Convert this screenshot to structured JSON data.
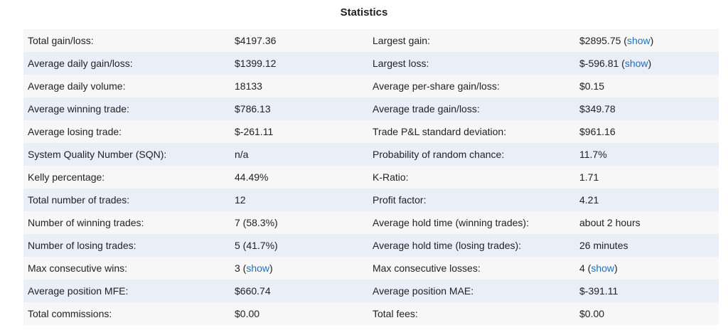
{
  "title": "Statistics",
  "rows": [
    {
      "l1": "Total gain/loss:",
      "v1": "$4197.36",
      "l2": "Largest gain:",
      "v2": "$2895.75",
      "v2_link": "show"
    },
    {
      "l1": "Average daily gain/loss:",
      "v1": "$1399.12",
      "l2": "Largest loss:",
      "v2": "$-596.81",
      "v2_link": "show"
    },
    {
      "l1": "Average daily volume:",
      "v1": "18133",
      "l2": "Average per-share gain/loss:",
      "v2": "$0.15"
    },
    {
      "l1": "Average winning trade:",
      "v1": "$786.13",
      "l2": "Average trade gain/loss:",
      "v2": "$349.78"
    },
    {
      "l1": "Average losing trade:",
      "v1": "$-261.11",
      "l2": "Trade P&L standard deviation:",
      "v2": "$961.16"
    },
    {
      "l1": "System Quality Number (SQN):",
      "v1": "n/a",
      "l2": "Probability of random chance:",
      "v2": "11.7%"
    },
    {
      "l1": "Kelly percentage:",
      "v1": "44.49%",
      "l2": "K-Ratio:",
      "v2": "1.71"
    },
    {
      "l1": "Total number of trades:",
      "v1": "12",
      "l2": "Profit factor:",
      "v2": "4.21"
    },
    {
      "l1": "Number of winning trades:",
      "v1": "7 (58.3%)",
      "l2": "Average hold time (winning trades):",
      "v2": "about 2 hours"
    },
    {
      "l1": "Number of losing trades:",
      "v1": "5 (41.7%)",
      "l2": "Average hold time (losing trades):",
      "v2": "26 minutes"
    },
    {
      "l1": "Max consecutive wins:",
      "v1": "3",
      "v1_link": "show",
      "l2": "Max consecutive losses:",
      "v2": "4",
      "v2_link": "show"
    },
    {
      "l1": "Average position MFE:",
      "v1": "$660.74",
      "l2": "Average position MAE:",
      "v2": "$-391.11"
    },
    {
      "l1": "Total commissions:",
      "v1": "$0.00",
      "l2": "Total fees:",
      "v2": "$0.00"
    }
  ]
}
